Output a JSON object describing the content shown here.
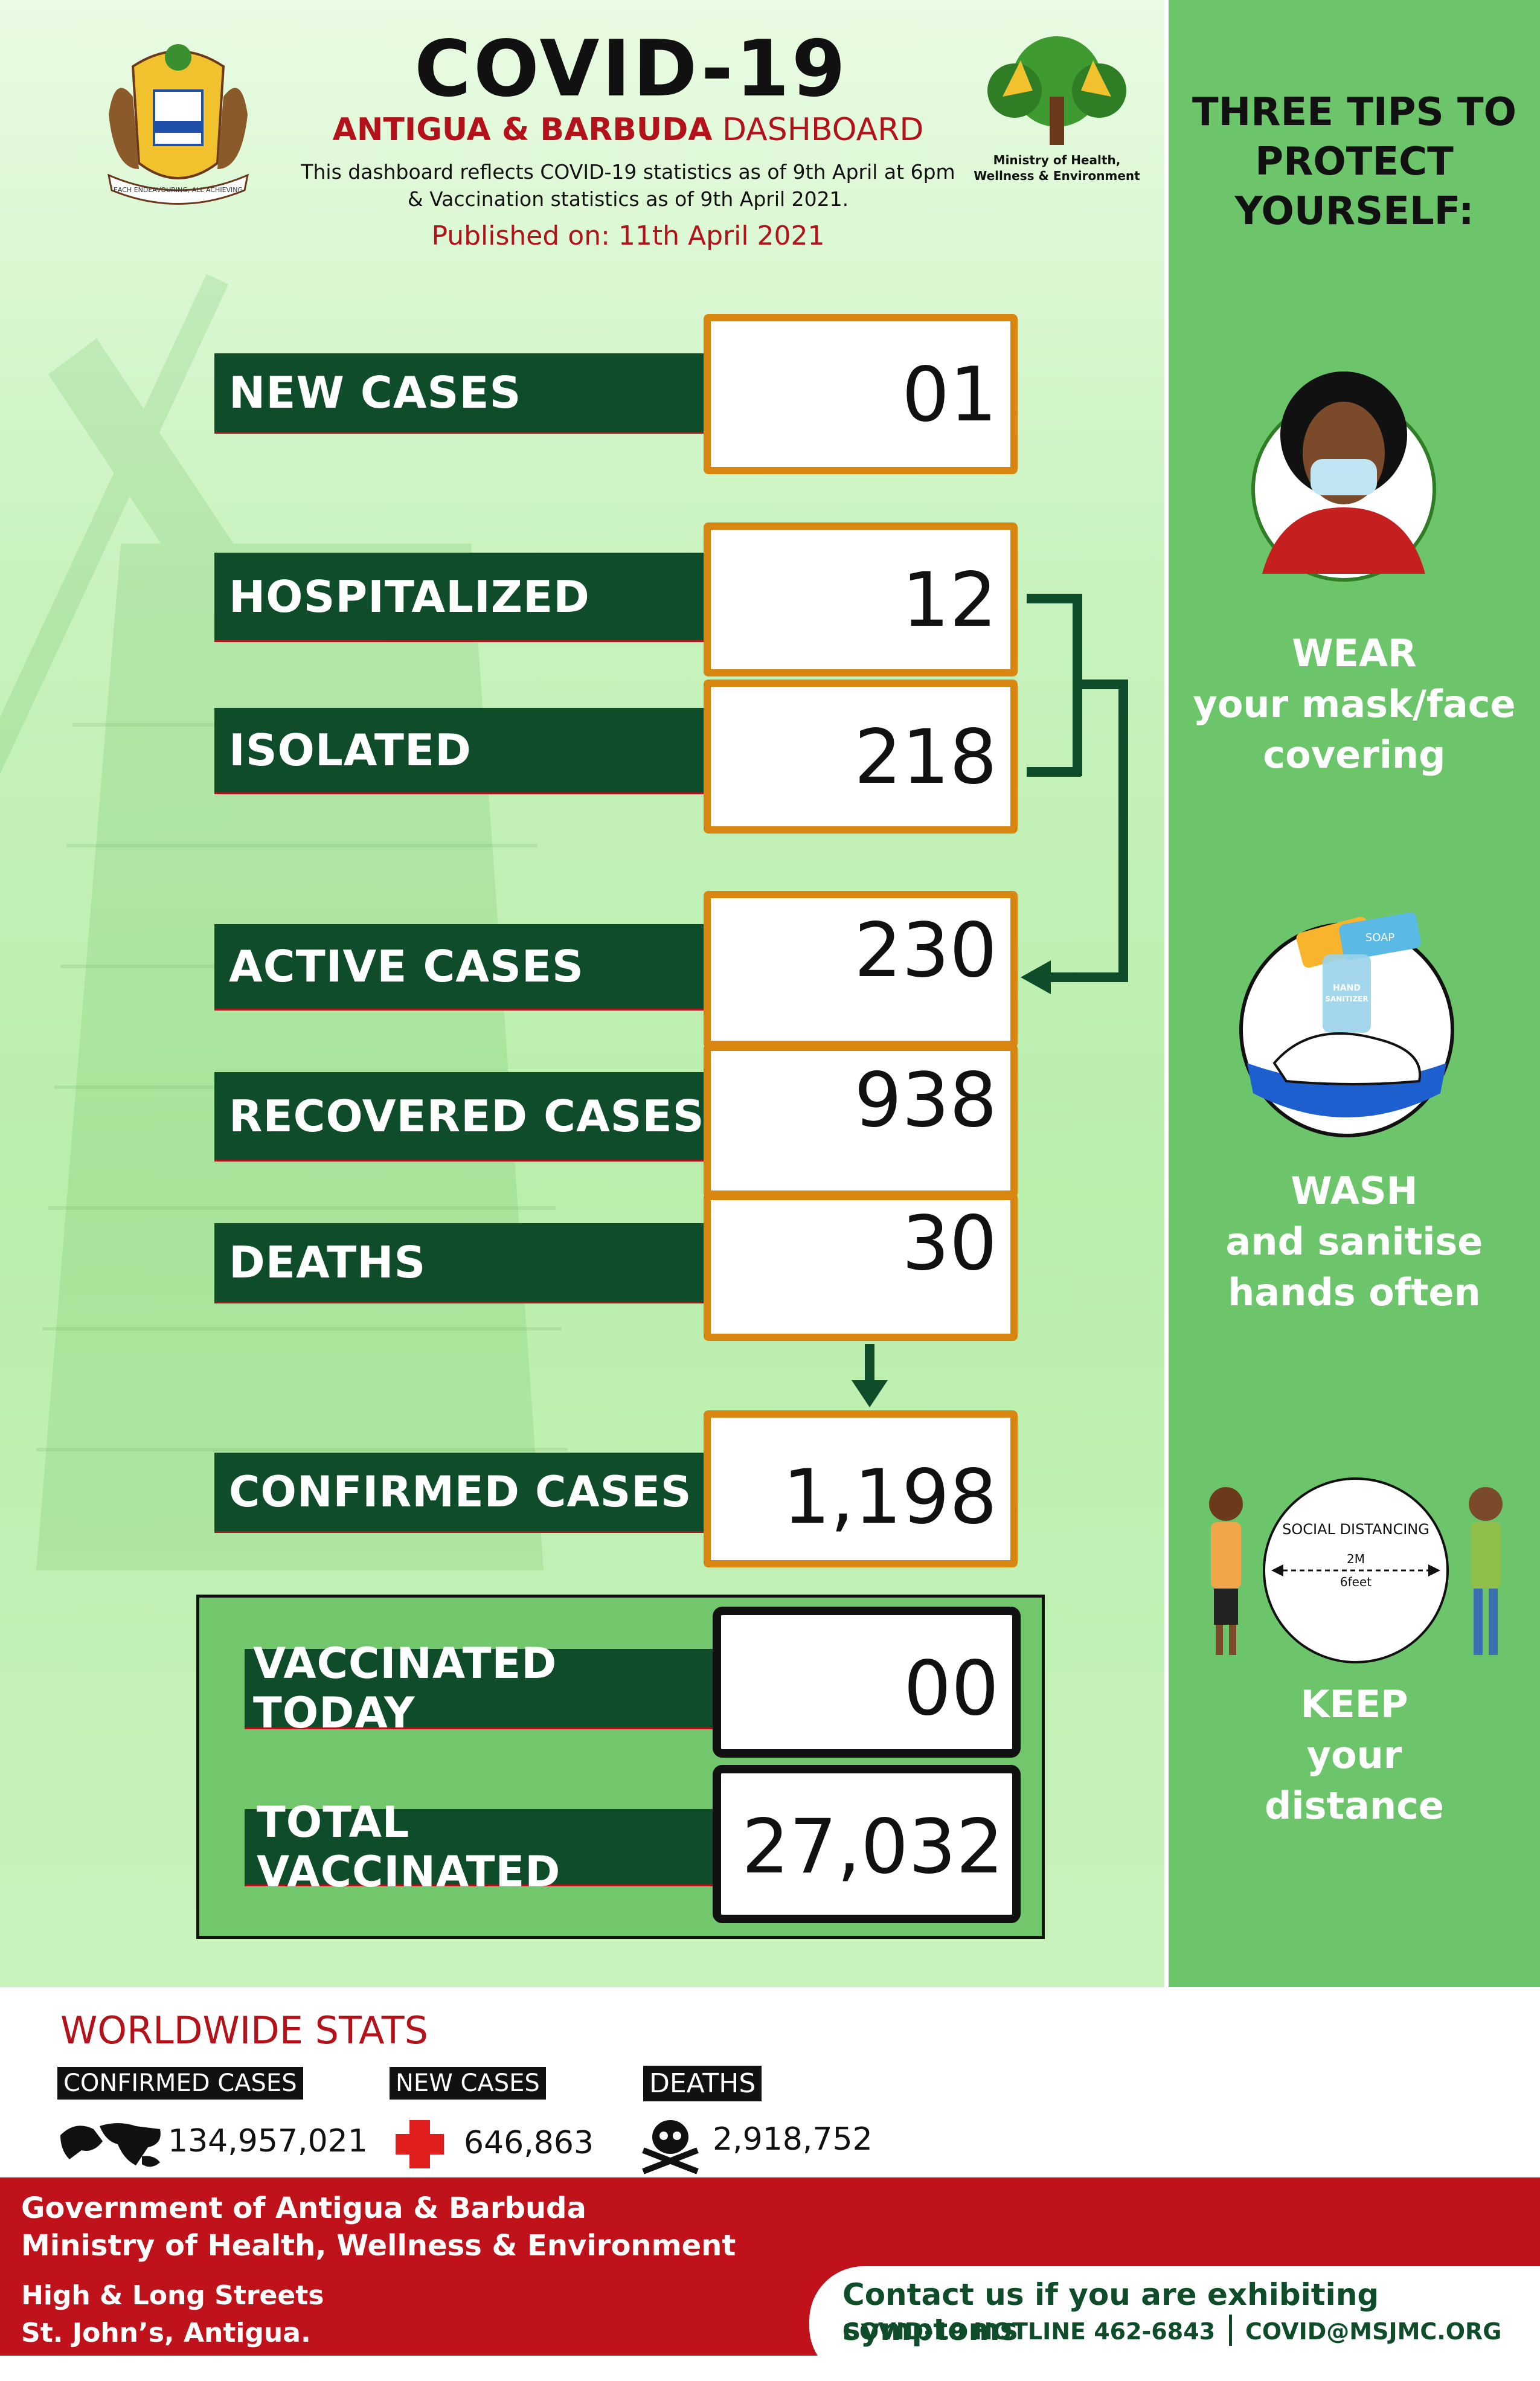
{
  "header": {
    "title": "COVID-19",
    "subtitle_bold": "ANTIGUA & BARBUDA",
    "subtitle_rest": "DASHBOARD",
    "desc_line1": "This dashboard reflects COVID-19 statistics as of 9th  April at 6pm",
    "desc_line2": "& Vaccination statistics as of 9th April 2021.",
    "published": "Published on: 11th April 2021",
    "ministry_logo_text_1": "Ministry of Health,",
    "ministry_logo_text_2": "Wellness & Environment",
    "coat_of_arms_motto": "EACH ENDEAVOURING, ALL ACHIEVING"
  },
  "stats": {
    "new_cases": {
      "label": "NEW CASES",
      "value": "01"
    },
    "hospitalized": {
      "label": "HOSPITALIZED",
      "value": "12"
    },
    "isolated": {
      "label": "ISOLATED",
      "value": "218"
    },
    "active": {
      "label": "ACTIVE CASES",
      "value": "230"
    },
    "recovered": {
      "label": "RECOVERED CASES",
      "value": "938"
    },
    "deaths": {
      "label": "DEATHS",
      "value": "30"
    },
    "confirmed": {
      "label": "CONFIRMED CASES",
      "value": "1,198"
    }
  },
  "vaccination": {
    "today": {
      "label": "VACCINATED TODAY",
      "value": "00"
    },
    "total": {
      "label": "TOTAL VACCINATED",
      "value": "27,032"
    }
  },
  "tips": {
    "title_1": "THREE TIPS TO",
    "title_2": "PROTECT",
    "title_3": "YOURSELF:",
    "tip1": [
      "WEAR",
      "your mask/face",
      "covering"
    ],
    "tip2": [
      "WASH",
      "and sanitise",
      "hands often"
    ],
    "tip3": [
      "KEEP",
      "your",
      "distance"
    ],
    "social_distancing": "SOCIAL DISTANCING",
    "distance_m": "2M",
    "distance_ft": "6feet",
    "sanitizer_label_1": "HAND",
    "sanitizer_label_2": "SANITIZER",
    "soap_label": "SOAP"
  },
  "worldwide": {
    "title": "WORLDWIDE STATS",
    "confirmed_label": "CONFIRMED CASES",
    "confirmed_value": "134,957,021",
    "new_label": "NEW CASES",
    "new_value": "646,863",
    "deaths_label": "DEATHS",
    "deaths_value": "2,918,752"
  },
  "footer": {
    "org_1": "Government of Antigua & Barbuda",
    "org_2": "Ministry of Health, Wellness & Environment",
    "address_1": "High & Long Streets",
    "address_2": "St. John’s, Antigua.",
    "contact_heading": "Contact us if you are exhibiting symptoms",
    "hotline": "COVID-19 HOTLINE 462-6843",
    "email": "COVID@MSJMC.ORG"
  },
  "colors": {
    "dark_green": "#0f4d2a",
    "orange_border": "#d8860f",
    "red": "#b3121b",
    "panel_green": "#6cc56a"
  }
}
